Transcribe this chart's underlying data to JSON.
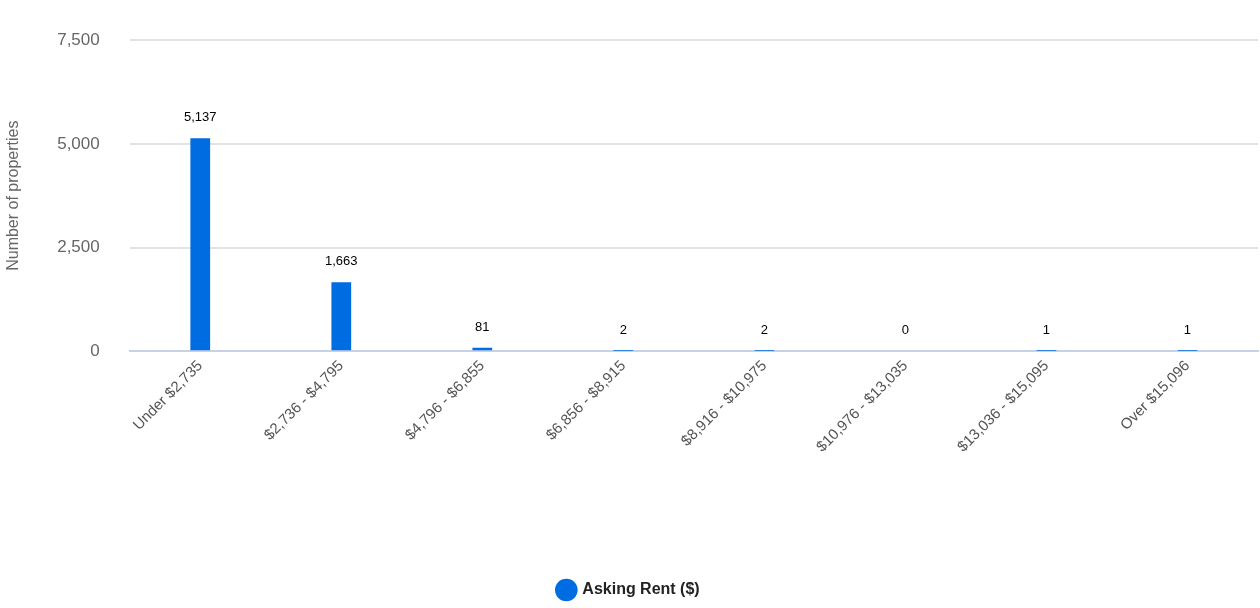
{
  "chart_data": {
    "type": "bar",
    "ylabel": "Number of properties",
    "categories": [
      "Under $2,735",
      "$2,736 - $4,795",
      "$4,796 - $6,855",
      "$6,856 - $8,915",
      "$8,916 - $10,975",
      "$10,976 - $13,035",
      "$13,036 - $15,095",
      "Over $15,096"
    ],
    "series": [
      {
        "name": "Asking Rent ($)",
        "color": "#006ce1",
        "values": [
          5137,
          1663,
          81,
          2,
          2,
          0,
          1,
          1
        ],
        "value_labels": [
          "5,137",
          "1,663",
          "81",
          "2",
          "2",
          "0",
          "1",
          "1"
        ]
      }
    ],
    "ylim": [
      0,
      7500
    ],
    "yticks": [
      {
        "value": 0,
        "label": "0"
      },
      {
        "value": 2500,
        "label": "2,500"
      },
      {
        "value": 5000,
        "label": "5,000"
      },
      {
        "value": 7500,
        "label": "7,500"
      }
    ],
    "grid": "y",
    "legend": "bottom"
  }
}
